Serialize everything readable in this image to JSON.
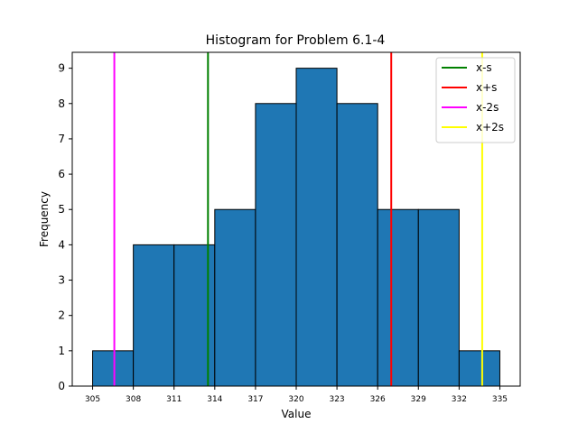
{
  "chart_data": {
    "type": "bar",
    "title": "Histogram for Problem 6.1-4",
    "xlabel": "Value",
    "ylabel": "Frequency",
    "bins": [
      {
        "start": 305,
        "end": 308,
        "count": 1
      },
      {
        "start": 308,
        "end": 311,
        "count": 4
      },
      {
        "start": 311,
        "end": 314,
        "count": 4
      },
      {
        "start": 314,
        "end": 317,
        "count": 5
      },
      {
        "start": 317,
        "end": 320,
        "count": 8
      },
      {
        "start": 320,
        "end": 323,
        "count": 9
      },
      {
        "start": 323,
        "end": 326,
        "count": 8
      },
      {
        "start": 326,
        "end": 329,
        "count": 5
      },
      {
        "start": 329,
        "end": 332,
        "count": 5
      },
      {
        "start": 332,
        "end": 335,
        "count": 1
      }
    ],
    "bar_color": "#1f77b4",
    "edge_color": "#000000",
    "xticks": [
      305,
      308,
      311,
      314,
      317,
      320,
      323,
      326,
      329,
      332,
      335
    ],
    "yticks": [
      0,
      1,
      2,
      3,
      4,
      5,
      6,
      7,
      8,
      9
    ],
    "xlim": [
      303.5,
      336.5
    ],
    "ylim": [
      0,
      9.45
    ],
    "grid": false,
    "legend_position": "top-right",
    "vlines": [
      {
        "name": "x-s",
        "x": 313.5,
        "color": "#008000"
      },
      {
        "name": "x+s",
        "x": 327.0,
        "color": "#ff0000"
      },
      {
        "name": "x-2s",
        "x": 306.6,
        "color": "#ff00ff"
      },
      {
        "name": "x+2s",
        "x": 333.7,
        "color": "#ffff00"
      }
    ]
  }
}
